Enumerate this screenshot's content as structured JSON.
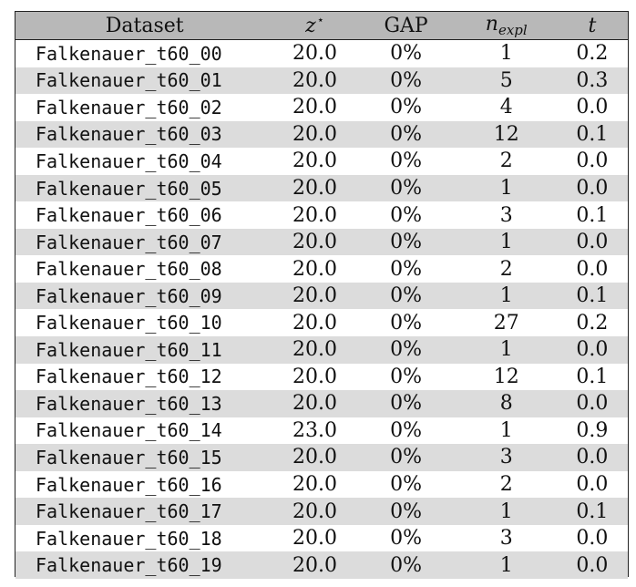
{
  "table": {
    "headers": {
      "dataset": "Dataset",
      "z_base": "z",
      "z_star": "⋆",
      "gap": "GAP",
      "n_base": "n",
      "n_sub": "expl",
      "t": "t"
    },
    "rows": [
      {
        "dataset": "Falkenauer_t60_00",
        "z": "20.0",
        "gap": "0%",
        "n": "1",
        "t": "0.2"
      },
      {
        "dataset": "Falkenauer_t60_01",
        "z": "20.0",
        "gap": "0%",
        "n": "5",
        "t": "0.3"
      },
      {
        "dataset": "Falkenauer_t60_02",
        "z": "20.0",
        "gap": "0%",
        "n": "4",
        "t": "0.0"
      },
      {
        "dataset": "Falkenauer_t60_03",
        "z": "20.0",
        "gap": "0%",
        "n": "12",
        "t": "0.1"
      },
      {
        "dataset": "Falkenauer_t60_04",
        "z": "20.0",
        "gap": "0%",
        "n": "2",
        "t": "0.0"
      },
      {
        "dataset": "Falkenauer_t60_05",
        "z": "20.0",
        "gap": "0%",
        "n": "1",
        "t": "0.0"
      },
      {
        "dataset": "Falkenauer_t60_06",
        "z": "20.0",
        "gap": "0%",
        "n": "3",
        "t": "0.1"
      },
      {
        "dataset": "Falkenauer_t60_07",
        "z": "20.0",
        "gap": "0%",
        "n": "1",
        "t": "0.0"
      },
      {
        "dataset": "Falkenauer_t60_08",
        "z": "20.0",
        "gap": "0%",
        "n": "2",
        "t": "0.0"
      },
      {
        "dataset": "Falkenauer_t60_09",
        "z": "20.0",
        "gap": "0%",
        "n": "1",
        "t": "0.1"
      },
      {
        "dataset": "Falkenauer_t60_10",
        "z": "20.0",
        "gap": "0%",
        "n": "27",
        "t": "0.2"
      },
      {
        "dataset": "Falkenauer_t60_11",
        "z": "20.0",
        "gap": "0%",
        "n": "1",
        "t": "0.0"
      },
      {
        "dataset": "Falkenauer_t60_12",
        "z": "20.0",
        "gap": "0%",
        "n": "12",
        "t": "0.1"
      },
      {
        "dataset": "Falkenauer_t60_13",
        "z": "20.0",
        "gap": "0%",
        "n": "8",
        "t": "0.0"
      },
      {
        "dataset": "Falkenauer_t60_14",
        "z": "23.0",
        "gap": "0%",
        "n": "1",
        "t": "0.9"
      },
      {
        "dataset": "Falkenauer_t60_15",
        "z": "20.0",
        "gap": "0%",
        "n": "3",
        "t": "0.0"
      },
      {
        "dataset": "Falkenauer_t60_16",
        "z": "20.0",
        "gap": "0%",
        "n": "2",
        "t": "0.0"
      },
      {
        "dataset": "Falkenauer_t60_17",
        "z": "20.0",
        "gap": "0%",
        "n": "1",
        "t": "0.1"
      },
      {
        "dataset": "Falkenauer_t60_18",
        "z": "20.0",
        "gap": "0%",
        "n": "3",
        "t": "0.0"
      },
      {
        "dataset": "Falkenauer_t60_19",
        "z": "20.0",
        "gap": "0%",
        "n": "1",
        "t": "0.0"
      }
    ]
  }
}
